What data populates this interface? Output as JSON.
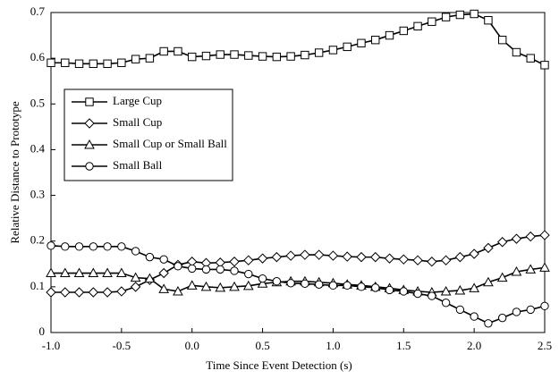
{
  "chart_data": {
    "type": "line",
    "xlabel": "Time Since Event Detection (s)",
    "ylabel": "Relative Distance to Prototype",
    "x": [
      -1.0,
      -0.9,
      -0.8,
      -0.7,
      -0.6,
      -0.5,
      -0.4,
      -0.3,
      -0.2,
      -0.1,
      0.0,
      0.1,
      0.2,
      0.3,
      0.4,
      0.5,
      0.6,
      0.7,
      0.8,
      0.9,
      1.0,
      1.1,
      1.2,
      1.3,
      1.4,
      1.5,
      1.6,
      1.7,
      1.8,
      1.9,
      2.0,
      2.1,
      2.2,
      2.3,
      2.4,
      2.5
    ],
    "series": [
      {
        "name": "Large Cup",
        "color": "#000000",
        "marker": "square",
        "values": [
          0.59,
          0.59,
          0.588,
          0.588,
          0.588,
          0.59,
          0.598,
          0.6,
          0.615,
          0.615,
          0.603,
          0.605,
          0.608,
          0.608,
          0.606,
          0.604,
          0.603,
          0.604,
          0.607,
          0.612,
          0.618,
          0.625,
          0.633,
          0.64,
          0.65,
          0.66,
          0.67,
          0.68,
          0.69,
          0.695,
          0.697,
          0.683,
          0.64,
          0.613,
          0.6,
          0.585
        ]
      },
      {
        "name": "Small Cup",
        "color": "#000000",
        "marker": "diamond",
        "values": [
          0.088,
          0.088,
          0.088,
          0.088,
          0.088,
          0.09,
          0.1,
          0.115,
          0.13,
          0.148,
          0.155,
          0.152,
          0.153,
          0.155,
          0.158,
          0.162,
          0.165,
          0.168,
          0.17,
          0.17,
          0.168,
          0.166,
          0.165,
          0.165,
          0.162,
          0.16,
          0.158,
          0.155,
          0.158,
          0.165,
          0.172,
          0.185,
          0.198,
          0.205,
          0.21,
          0.213
        ]
      },
      {
        "name": "Small Cup or Small Ball",
        "color": "#000000",
        "marker": "triangle",
        "values": [
          0.13,
          0.13,
          0.13,
          0.13,
          0.13,
          0.13,
          0.12,
          0.118,
          0.095,
          0.09,
          0.103,
          0.1,
          0.098,
          0.1,
          0.102,
          0.107,
          0.11,
          0.112,
          0.112,
          0.11,
          0.108,
          0.105,
          0.103,
          0.1,
          0.097,
          0.093,
          0.09,
          0.088,
          0.09,
          0.092,
          0.097,
          0.11,
          0.12,
          0.133,
          0.138,
          0.142
        ]
      },
      {
        "name": "Small Ball",
        "color": "#000000",
        "marker": "circle",
        "values": [
          0.19,
          0.188,
          0.188,
          0.188,
          0.188,
          0.188,
          0.178,
          0.165,
          0.16,
          0.145,
          0.14,
          0.138,
          0.138,
          0.135,
          0.128,
          0.118,
          0.112,
          0.108,
          0.107,
          0.105,
          0.103,
          0.103,
          0.1,
          0.098,
          0.093,
          0.09,
          0.085,
          0.08,
          0.065,
          0.05,
          0.035,
          0.02,
          0.032,
          0.045,
          0.05,
          0.058
        ]
      }
    ],
    "xlim": [
      -1.0,
      2.5
    ],
    "xticks": [
      {
        "value": -1.0,
        "label": "-1.0"
      },
      {
        "value": -0.5,
        "label": "-0.5"
      },
      {
        "value": 0,
        "label": "0.0"
      },
      {
        "value": 0.5,
        "label": "0.5"
      },
      {
        "value": 1,
        "label": "1.0"
      },
      {
        "value": 1.5,
        "label": "1.5"
      },
      {
        "value": 2,
        "label": "2.0"
      },
      {
        "value": 2.5,
        "label": "2.5"
      }
    ],
    "ylim": [
      0,
      0.7
    ],
    "yticks": [
      0,
      0.1,
      0.2,
      0.3,
      0.4,
      0.5,
      0.6,
      0.7
    ],
    "grid": false,
    "legend": "upper left"
  }
}
